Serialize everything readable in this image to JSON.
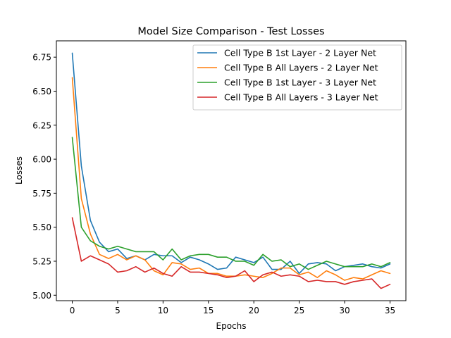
{
  "chart_data": {
    "type": "line",
    "title": "Model Size Comparison - Test Losses",
    "xlabel": "Epochs",
    "ylabel": "Losses",
    "xlim": [
      -1.75,
      36.75
    ],
    "ylim": [
      4.96,
      6.87
    ],
    "xticks": [
      0,
      5,
      10,
      15,
      20,
      25,
      30,
      35
    ],
    "yticks": [
      5.0,
      5.25,
      5.5,
      5.75,
      6.0,
      6.25,
      6.5,
      6.75
    ],
    "ytick_labels": [
      "5.00",
      "5.25",
      "5.50",
      "5.75",
      "6.00",
      "6.25",
      "6.50",
      "6.75"
    ],
    "grid": false,
    "legend_position": "upper right",
    "x": [
      0,
      1,
      2,
      3,
      4,
      5,
      6,
      7,
      8,
      9,
      10,
      11,
      12,
      13,
      14,
      15,
      16,
      17,
      18,
      19,
      20,
      21,
      22,
      23,
      24,
      25,
      26,
      27,
      28,
      29,
      30,
      31,
      32,
      33,
      34,
      35
    ],
    "series": [
      {
        "name": "Cell Type B 1st Layer - 2 Layer Net",
        "color": "#1f77b4",
        "values": [
          6.78,
          5.95,
          5.55,
          5.39,
          5.32,
          5.34,
          5.27,
          5.29,
          5.26,
          5.3,
          5.29,
          5.29,
          5.24,
          5.28,
          5.26,
          5.23,
          5.19,
          5.2,
          5.28,
          5.26,
          5.24,
          5.28,
          5.19,
          5.19,
          5.25,
          5.16,
          5.23,
          5.24,
          5.23,
          5.18,
          5.21,
          5.22,
          5.23,
          5.21,
          5.2,
          5.23
        ]
      },
      {
        "name": "Cell Type B All Layers - 2 Layer Net",
        "color": "#ff7f0e",
        "values": [
          6.6,
          5.71,
          5.45,
          5.3,
          5.27,
          5.3,
          5.26,
          5.29,
          5.26,
          5.18,
          5.15,
          5.24,
          5.23,
          5.19,
          5.2,
          5.16,
          5.16,
          5.14,
          5.14,
          5.15,
          5.14,
          5.13,
          5.16,
          5.2,
          5.2,
          5.15,
          5.17,
          5.13,
          5.18,
          5.15,
          5.11,
          5.13,
          5.12,
          5.15,
          5.18,
          5.16
        ]
      },
      {
        "name": "Cell Type B 1st Layer - 3 Layer Net",
        "color": "#2ca02c",
        "values": [
          6.16,
          5.5,
          5.4,
          5.36,
          5.34,
          5.36,
          5.34,
          5.32,
          5.32,
          5.32,
          5.26,
          5.34,
          5.26,
          5.29,
          5.3,
          5.3,
          5.28,
          5.28,
          5.25,
          5.25,
          5.22,
          5.3,
          5.25,
          5.26,
          5.21,
          5.23,
          5.19,
          5.22,
          5.25,
          5.23,
          5.21,
          5.21,
          5.21,
          5.23,
          5.21,
          5.24
        ]
      },
      {
        "name": "Cell Type B All Layers - 3 Layer Net",
        "color": "#d62728",
        "values": [
          5.57,
          5.25,
          5.29,
          5.26,
          5.23,
          5.17,
          5.18,
          5.21,
          5.17,
          5.2,
          5.16,
          5.14,
          5.21,
          5.17,
          5.17,
          5.16,
          5.15,
          5.13,
          5.14,
          5.18,
          5.1,
          5.15,
          5.17,
          5.14,
          5.15,
          5.14,
          5.1,
          5.11,
          5.1,
          5.1,
          5.08,
          5.1,
          5.11,
          5.12,
          5.05,
          5.08
        ]
      }
    ]
  }
}
